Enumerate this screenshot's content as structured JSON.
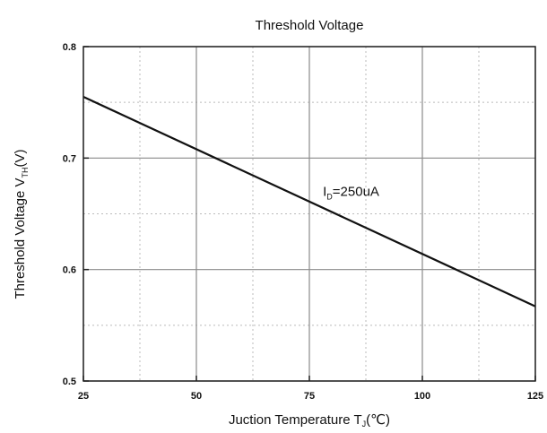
{
  "chart_data": {
    "type": "line",
    "title": "Threshold Voltage",
    "xlabel": {
      "main": "Juction Temperature T",
      "sub": "J",
      "unit": "(℃)"
    },
    "ylabel": {
      "main": "Threshold Voltage V",
      "sub": "TH",
      "unit": "(V)"
    },
    "xlim": [
      25,
      125
    ],
    "ylim": [
      0.5,
      0.8
    ],
    "x_major_ticks": [
      25,
      50,
      75,
      100,
      125
    ],
    "x_tick_labels": [
      "25",
      "50",
      "75",
      "100",
      "125"
    ],
    "x_minor_ticks": [
      37.5,
      62.5,
      87.5,
      112.5
    ],
    "y_major_ticks": [
      0.5,
      0.6,
      0.7,
      0.8
    ],
    "y_tick_labels": [
      "0.5",
      "0.6",
      "0.7",
      "0.8"
    ],
    "y_minor_ticks": [
      0.55,
      0.65,
      0.75
    ],
    "grid": true,
    "series": [
      {
        "x": [
          25,
          125
        ],
        "y": [
          0.755,
          0.567
        ],
        "color": "#111111"
      }
    ],
    "annotations": [
      {
        "main": "I",
        "sub": "D",
        "rest": "=250uA",
        "x": 78,
        "y": 0.666
      }
    ]
  }
}
